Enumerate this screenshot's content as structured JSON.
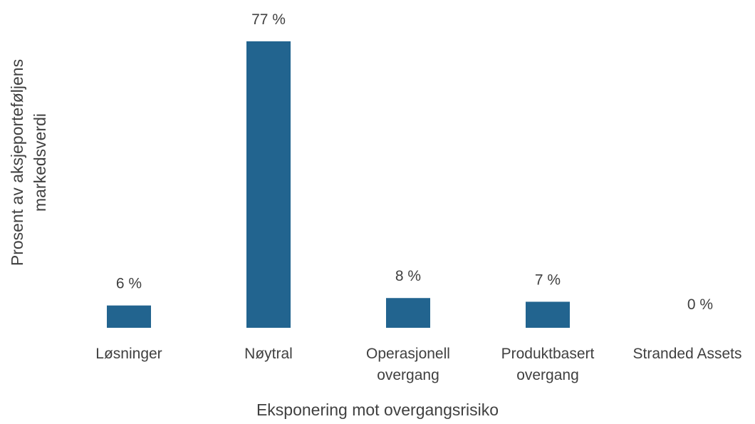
{
  "chart_data": {
    "type": "bar",
    "x_label": "Eksponering mot overgangsrisiko",
    "y_label": "Prosent av aksjeporteføljens markedsverdi",
    "categories": [
      "Løsninger",
      "Nøytral",
      "Operasjonell overgang",
      "Produktbasert overgang",
      "Stranded Assets"
    ],
    "values": [
      6,
      77,
      8,
      7,
      0
    ],
    "value_labels": [
      "6 %",
      "77 %",
      "8 %",
      "7 %",
      "0 %"
    ],
    "color": "#22648f"
  }
}
